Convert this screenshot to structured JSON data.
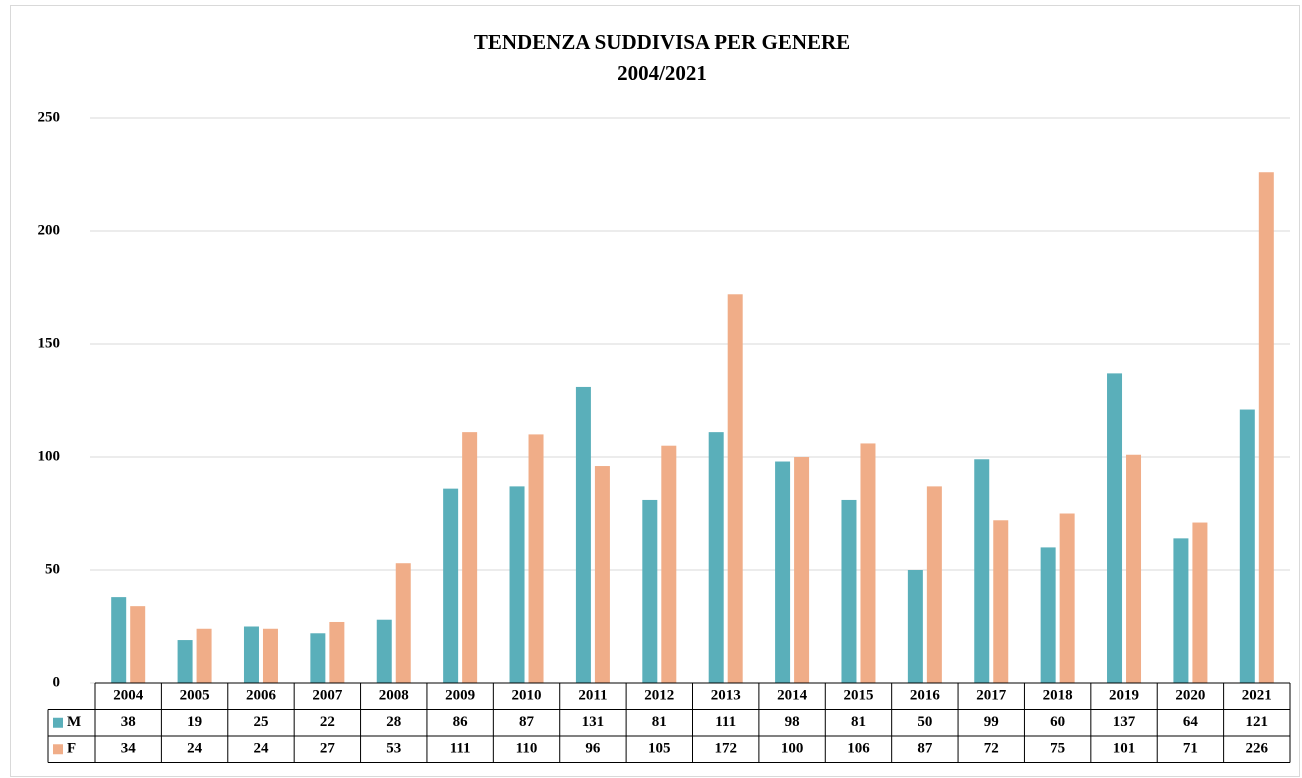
{
  "chart_data": {
    "type": "bar",
    "title": "TENDENZA SUDDIVISA PER GENERE",
    "subtitle": "2004/2021",
    "categories": [
      "2004",
      "2005",
      "2006",
      "2007",
      "2008",
      "2009",
      "2010",
      "2011",
      "2012",
      "2013",
      "2014",
      "2015",
      "2016",
      "2017",
      "2018",
      "2019",
      "2020",
      "2021"
    ],
    "series": [
      {
        "name": "M",
        "color": "#5aafba",
        "values": [
          38,
          19,
          25,
          22,
          28,
          86,
          87,
          131,
          81,
          111,
          98,
          81,
          50,
          99,
          60,
          137,
          64,
          121
        ]
      },
      {
        "name": "F",
        "color": "#f0ad88",
        "values": [
          34,
          24,
          24,
          27,
          53,
          111,
          110,
          96,
          105,
          172,
          100,
          106,
          87,
          72,
          75,
          101,
          71,
          226
        ]
      }
    ],
    "ylim": [
      0,
      250
    ],
    "yticks": [
      0,
      50,
      100,
      150,
      200,
      250
    ],
    "grid": true
  }
}
